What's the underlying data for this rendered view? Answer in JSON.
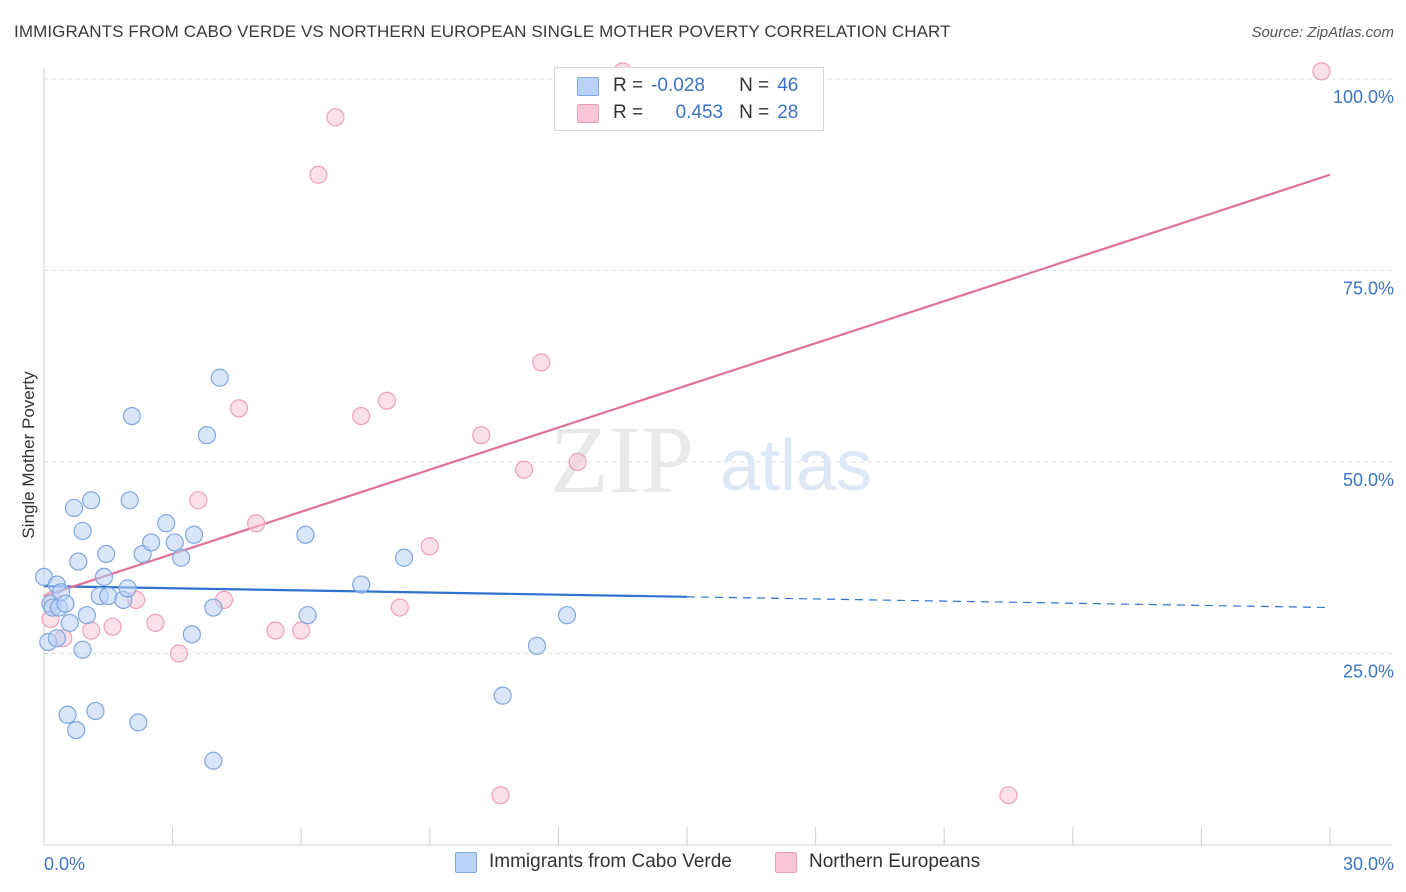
{
  "title": "IMMIGRANTS FROM CABO VERDE VS NORTHERN EUROPEAN SINGLE MOTHER POVERTY CORRELATION CHART",
  "source": "Source: ZipAtlas.com",
  "watermark": {
    "zip": "ZIP",
    "atlas": "atlas"
  },
  "legend": {
    "rows": [
      {
        "r_label": "R =",
        "r_value": "-0.028",
        "n_label": "N =",
        "n_value": "46"
      },
      {
        "r_label": "R =",
        "r_value": "0.453",
        "n_label": "N =",
        "n_value": "28"
      }
    ]
  },
  "bottom_legend": {
    "series1": "Immigrants from Cabo Verde",
    "series2": "Northern Europeans"
  },
  "colors": {
    "blue_fill": "#b9d2f5",
    "blue_stroke": "#7ea6e0",
    "blue_line": "#2f72cf",
    "pink_fill": "#f8c6d6",
    "pink_stroke": "#eda0b8",
    "pink_line": "#e0719a",
    "tick_text": "#3b74c5",
    "grid": "#dedede"
  },
  "chart_data": {
    "type": "scatter",
    "title": "IMMIGRANTS FROM CABO VERDE VS NORTHERN EUROPEAN SINGLE MOTHER POVERTY CORRELATION CHART",
    "xlabel": "",
    "ylabel": "Single Mother Poverty",
    "xlim": [
      0,
      30
    ],
    "ylim": [
      0,
      102
    ],
    "x_tick_labels": [
      {
        "value": 0,
        "label": "0.0%"
      },
      {
        "value": 30,
        "label": "30.0%"
      }
    ],
    "y_tick_labels": [
      {
        "value": 25,
        "label": "25.0%"
      },
      {
        "value": 50,
        "label": "50.0%"
      },
      {
        "value": 75,
        "label": "75.0%"
      },
      {
        "value": 100,
        "label": "100.0%"
      }
    ],
    "series": [
      {
        "name": "Immigrants from Cabo Verde",
        "color": "#7ea6e0",
        "points": [
          [
            0.0,
            35
          ],
          [
            0.1,
            26.5
          ],
          [
            0.15,
            31.5
          ],
          [
            0.2,
            31
          ],
          [
            0.3,
            34
          ],
          [
            0.3,
            27
          ],
          [
            0.35,
            31
          ],
          [
            0.4,
            33
          ],
          [
            0.5,
            31.5
          ],
          [
            0.55,
            17
          ],
          [
            0.6,
            29
          ],
          [
            0.7,
            44
          ],
          [
            0.75,
            15
          ],
          [
            0.8,
            37
          ],
          [
            0.9,
            25.5
          ],
          [
            0.9,
            41
          ],
          [
            1.0,
            30
          ],
          [
            1.1,
            45
          ],
          [
            1.2,
            17.5
          ],
          [
            1.3,
            32.5
          ],
          [
            1.4,
            35
          ],
          [
            1.45,
            38
          ],
          [
            1.5,
            32.5
          ],
          [
            1.85,
            32
          ],
          [
            1.95,
            33.5
          ],
          [
            2.0,
            45
          ],
          [
            2.05,
            56
          ],
          [
            2.2,
            16
          ],
          [
            2.3,
            38
          ],
          [
            2.5,
            39.5
          ],
          [
            2.85,
            42
          ],
          [
            3.05,
            39.5
          ],
          [
            3.2,
            37.5
          ],
          [
            3.45,
            27.5
          ],
          [
            3.5,
            40.5
          ],
          [
            3.8,
            53.5
          ],
          [
            3.95,
            31
          ],
          [
            3.95,
            11
          ],
          [
            4.1,
            61
          ],
          [
            6.1,
            40.5
          ],
          [
            6.15,
            30
          ],
          [
            7.4,
            34
          ],
          [
            8.4,
            37.5
          ],
          [
            10.7,
            19.5
          ],
          [
            11.5,
            26
          ],
          [
            12.2,
            30
          ]
        ]
      },
      {
        "name": "Northern Europeans",
        "color": "#eda0b8",
        "points": [
          [
            0.15,
            29.5
          ],
          [
            0.2,
            32
          ],
          [
            0.45,
            27
          ],
          [
            1.1,
            28
          ],
          [
            1.6,
            28.5
          ],
          [
            2.15,
            32
          ],
          [
            2.6,
            29
          ],
          [
            3.15,
            25
          ],
          [
            3.6,
            45
          ],
          [
            4.2,
            32
          ],
          [
            4.55,
            57
          ],
          [
            4.95,
            42
          ],
          [
            5.4,
            28
          ],
          [
            6.0,
            28
          ],
          [
            6.4,
            87.5
          ],
          [
            6.8,
            95
          ],
          [
            7.4,
            56
          ],
          [
            8.0,
            58
          ],
          [
            8.3,
            31
          ],
          [
            9.0,
            39
          ],
          [
            10.2,
            53.5
          ],
          [
            10.65,
            6.5
          ],
          [
            11.2,
            49
          ],
          [
            11.6,
            63
          ],
          [
            12.45,
            50
          ],
          [
            13.5,
            101
          ],
          [
            22.5,
            6.5
          ],
          [
            29.8,
            101
          ]
        ]
      }
    ],
    "trendlines": [
      {
        "series": "Immigrants from Cabo Verde",
        "solid": [
          [
            0,
            33.8
          ],
          [
            15,
            32.4
          ]
        ],
        "dashed": [
          [
            15,
            32.4
          ],
          [
            30,
            31.0
          ]
        ]
      },
      {
        "series": "Northern Europeans",
        "solid": [
          [
            0,
            32.5
          ],
          [
            30,
            87.5
          ]
        ]
      }
    ]
  }
}
